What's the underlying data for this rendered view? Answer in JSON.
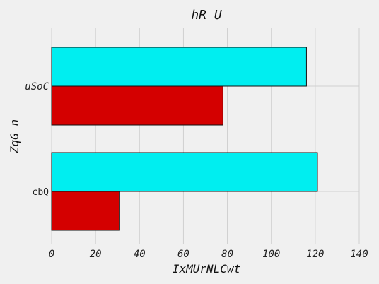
{
  "chart_data": {
    "type": "bar",
    "orientation": "horizontal",
    "title": "hR U",
    "xlabel": "IxMUrNLCwt",
    "ylabel": "ZqG n",
    "categories": [
      "uSoC",
      "cbQ"
    ],
    "category_label_italic": [
      true,
      false
    ],
    "series": [
      {
        "color": "#00eef0",
        "values": [
          116,
          121
        ]
      },
      {
        "color": "#d40000",
        "values": [
          78,
          31
        ]
      }
    ],
    "xlim": [
      0,
      140
    ],
    "xticks": [
      0,
      20,
      40,
      60,
      80,
      100,
      120,
      140
    ],
    "grid": true,
    "legend": "none"
  }
}
